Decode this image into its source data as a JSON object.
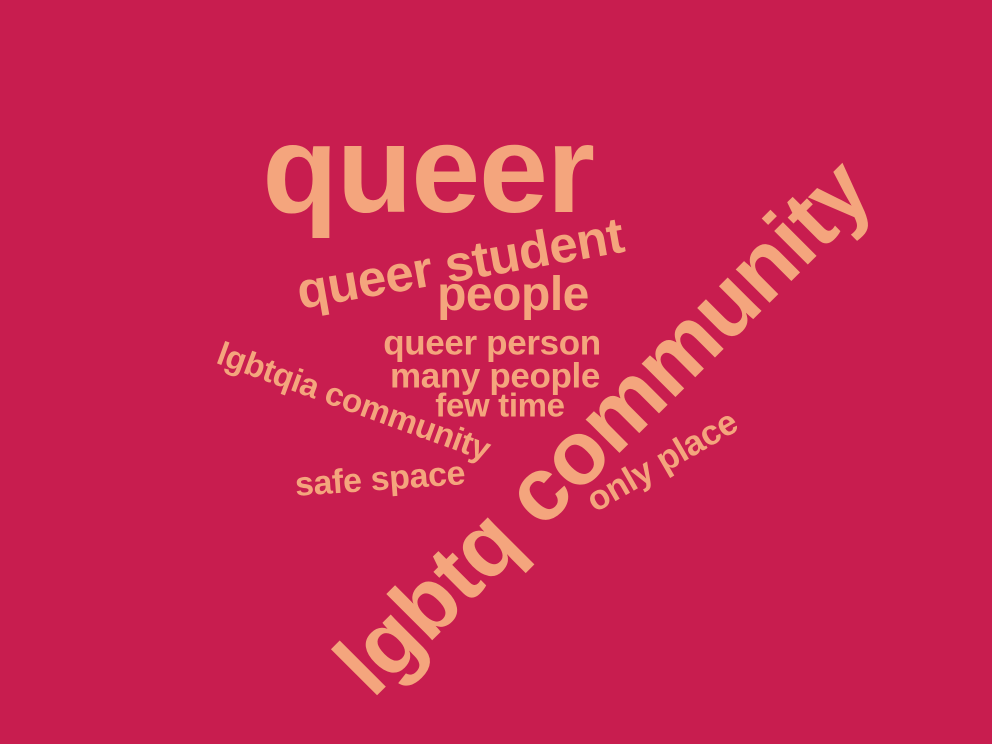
{
  "cloud": {
    "background_color": "#c81d4f",
    "text_color": "#f4a57d",
    "words": {
      "queer": "queer",
      "lgbtq_community": "lgbtq community",
      "queer_student": "queer student",
      "people": "people",
      "lgbtqia_community": "lgbtqia community",
      "queer_person": "queer person",
      "many_people": "many people",
      "few_time": "few time",
      "safe_space": "safe space",
      "only_place": "only place"
    }
  }
}
